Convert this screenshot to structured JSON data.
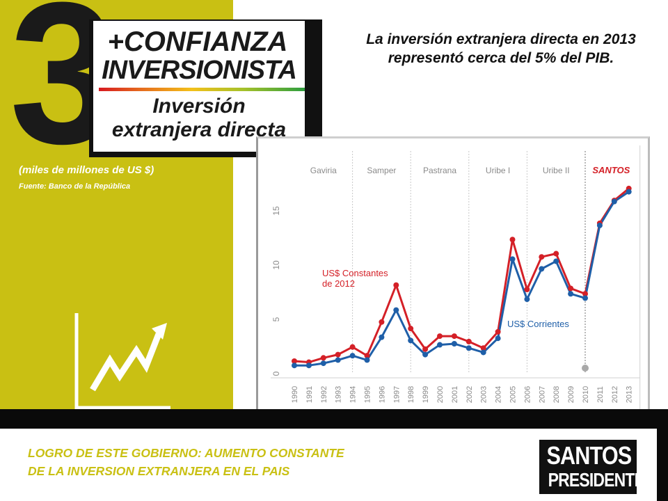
{
  "header": {
    "big_number": "3",
    "line1": "+CONFIANZA",
    "line2": "INVERSIONISTA",
    "line3": "Inversión",
    "line4": "extranjera directa"
  },
  "headline": "La inversión extranjera directa en 2013 representó cerca del 5% del PIB.",
  "units_note": "(miles de millones de US $)",
  "source_note": "Fuente: Banco de la República",
  "footer": {
    "line1": "LOGRO DE ESTE GOBIERNO: AUMENTO CONSTANTE",
    "line2": "DE LA INVERSION EXTRANJERA EN EL PAIS"
  },
  "logo": {
    "line1": "SANTOS",
    "line2": "PRESIDENTE"
  },
  "colors": {
    "panel": "#c9c013",
    "constant_series": "#d42027",
    "current_series": "#1f5fa8",
    "highlight_period": "#d42027"
  },
  "chart_data": {
    "type": "line",
    "categories": [
      "1990",
      "1991",
      "1992",
      "1993",
      "1994",
      "1995",
      "1996",
      "1997",
      "1998",
      "1999",
      "2000",
      "2001",
      "2002",
      "2003",
      "2004",
      "2005",
      "2006",
      "2007",
      "2008",
      "2009",
      "2010",
      "2011",
      "2012",
      "2013"
    ],
    "series": [
      {
        "name": "US$ Constantes de 2012",
        "values": [
          0.9,
          0.8,
          1.2,
          1.5,
          2.2,
          1.4,
          4.5,
          7.9,
          3.9,
          2.0,
          3.2,
          3.2,
          2.7,
          2.1,
          3.6,
          12.1,
          7.5,
          10.5,
          10.8,
          7.6,
          7.1,
          13.6,
          15.7,
          16.8
        ]
      },
      {
        "name": "US$ Corrientes",
        "values": [
          0.5,
          0.5,
          0.7,
          1.0,
          1.4,
          1.0,
          3.1,
          5.6,
          2.8,
          1.5,
          2.4,
          2.5,
          2.1,
          1.7,
          3.0,
          10.3,
          6.6,
          9.4,
          10.1,
          7.1,
          6.7,
          13.4,
          15.6,
          16.5
        ]
      }
    ],
    "y_ticks": [
      "0",
      "5",
      "10",
      "15"
    ],
    "ylim": [
      0,
      19
    ],
    "periods": [
      {
        "label": "Gaviria",
        "start": "1990",
        "end": "1994"
      },
      {
        "label": "Samper",
        "start": "1994",
        "end": "1998"
      },
      {
        "label": "Pastrana",
        "start": "1998",
        "end": "2002"
      },
      {
        "label": "Uribe I",
        "start": "2002",
        "end": "2006"
      },
      {
        "label": "Uribe II",
        "start": "2006",
        "end": "2010"
      },
      {
        "label": "SANTOS",
        "start": "2010",
        "end": "2013",
        "highlight": true
      }
    ],
    "series_labels": [
      {
        "text_line1": "US$ Constantes",
        "text_line2": "de 2012",
        "series": 0
      },
      {
        "text_line1": "US$ Corrientes",
        "text_line2": "",
        "series": 1
      }
    ],
    "grid": false,
    "marker_year": "2010"
  }
}
